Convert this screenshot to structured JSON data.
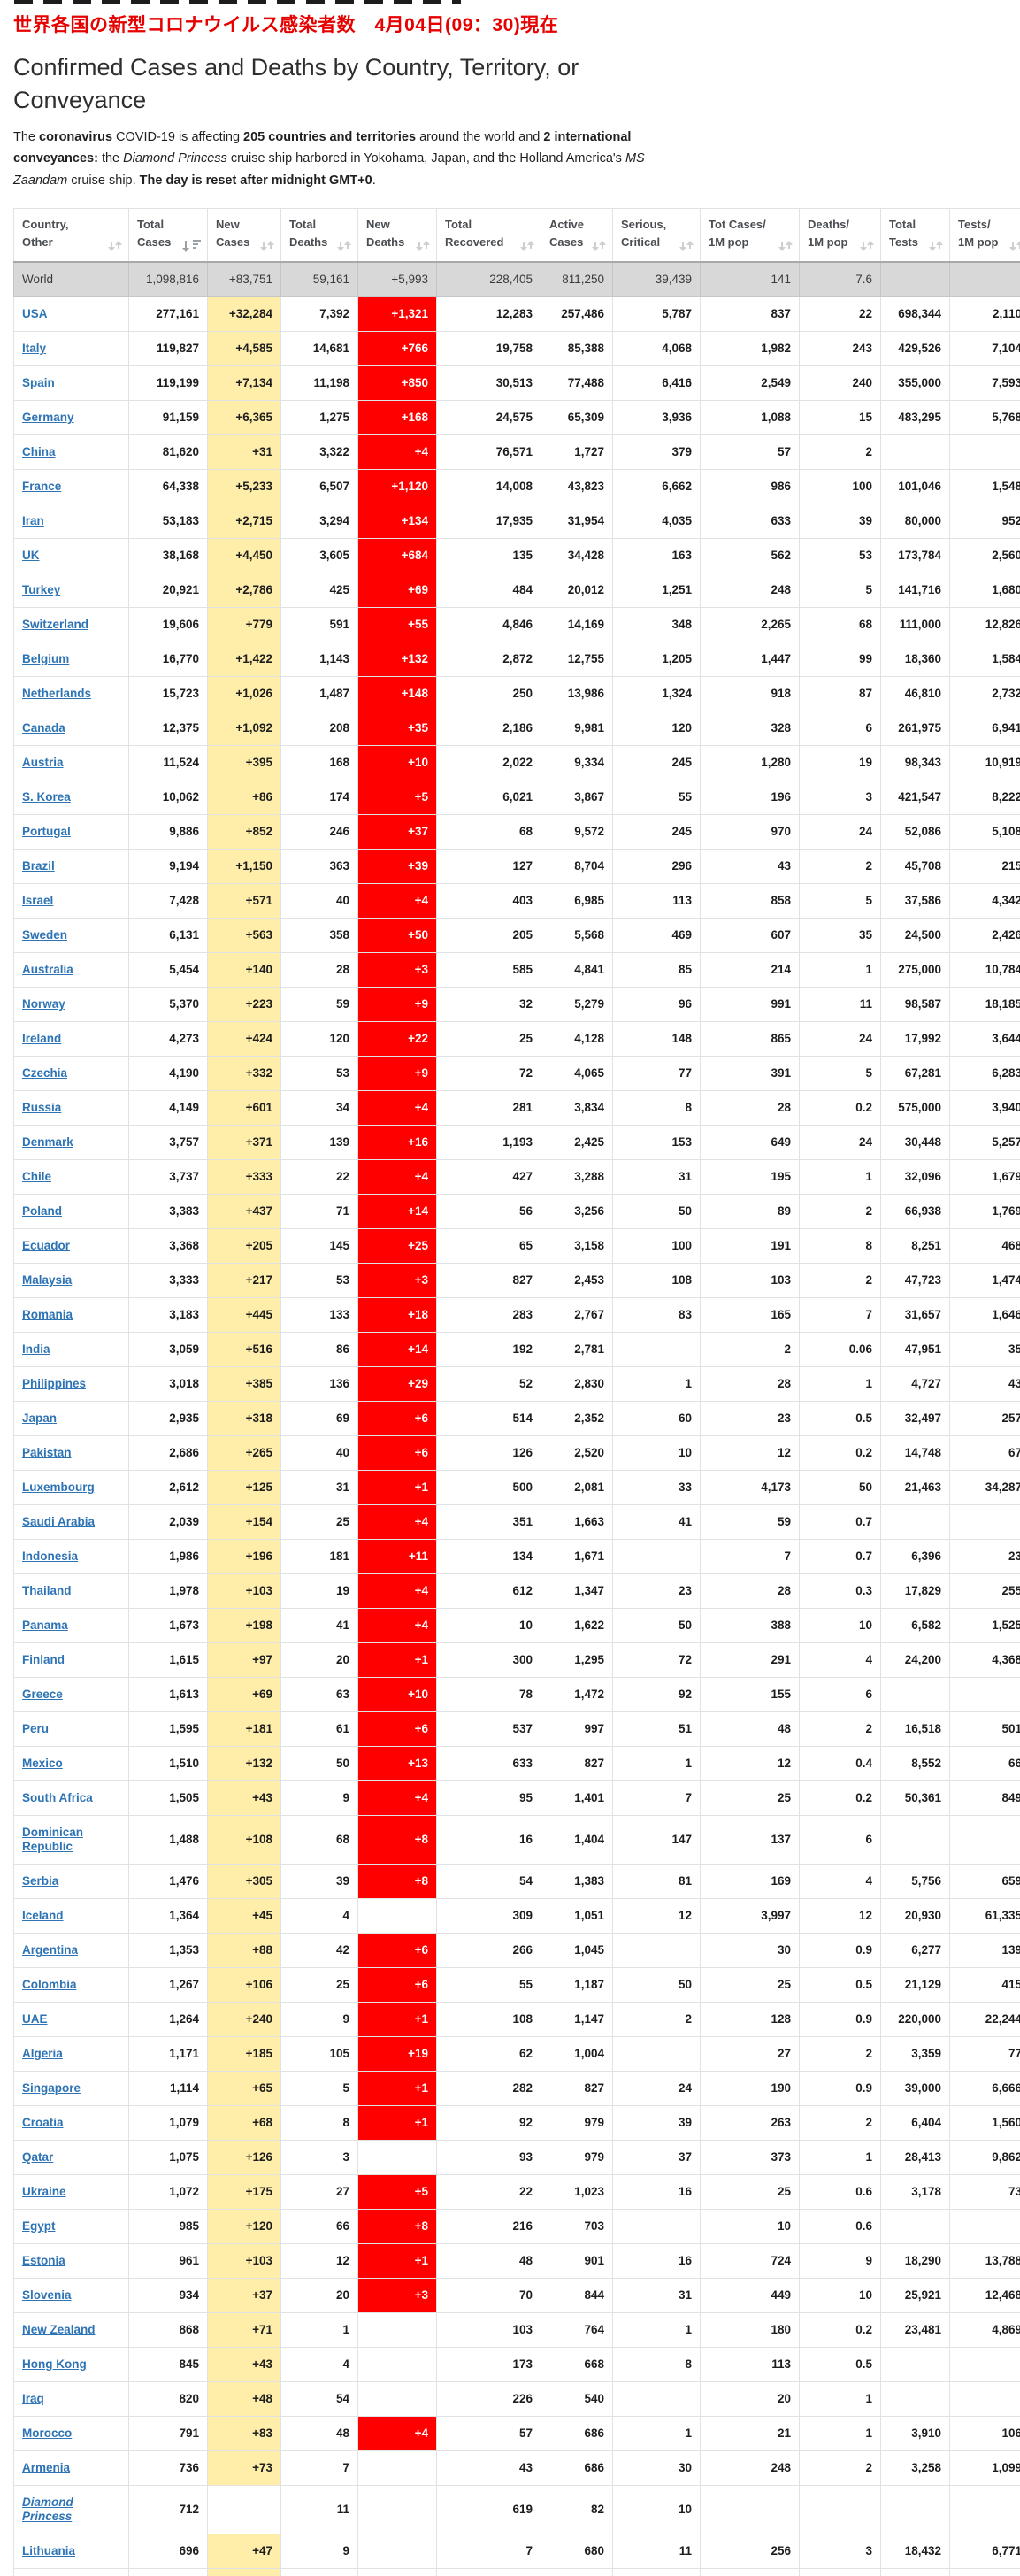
{
  "page": {
    "jp_title": "世界各国の新型コロナウイルス感染者数　4月04日(09：30)現在",
    "title": "Confirmed Cases and Deaths by Country, Territory, or Conveyance",
    "intro": {
      "seg1": "The ",
      "seg2": "coronavirus",
      "seg3": " COVID-19 is affecting ",
      "seg4": "205 countries and territories",
      "seg5": " around the world and ",
      "seg6": "2 international conveyances:",
      "seg7": " the ",
      "seg8": "Diamond Princess",
      "seg9": " cruise ship harbored in Yokohama, Japan, and the Holland America's ",
      "seg10": "MS Zaandam",
      "seg11": " cruise ship. ",
      "seg12": "The day is reset after midnight GMT+0",
      "seg13": "."
    },
    "colors": {
      "title_red": "#e60000",
      "new_cases_bg": "#ffeeaa",
      "new_deaths_bg": "#ff0000",
      "world_row_bg": "#d8d8d8",
      "country_link": "#2e74b5"
    }
  },
  "table": {
    "sorted_column": "Total Cases",
    "sort_direction": "desc",
    "columns": [
      {
        "label": "Country,\nOther"
      },
      {
        "label": "Total\nCases"
      },
      {
        "label": "New\nCases"
      },
      {
        "label": "Total\nDeaths"
      },
      {
        "label": "New\nDeaths"
      },
      {
        "label": "Total\nRecovered"
      },
      {
        "label": "Active\nCases"
      },
      {
        "label": "Serious,\nCritical"
      },
      {
        "label": "Tot Cases/\n1M pop"
      },
      {
        "label": "Deaths/\n1M pop"
      },
      {
        "label": "Total\nTests"
      },
      {
        "label": "Tests/\n1M pop"
      }
    ],
    "cell_names": [
      "total-cases-cell",
      "new-cases-cell",
      "total-deaths-cell",
      "new-deaths-cell",
      "total-recovered-cell",
      "active-cases-cell",
      "serious-critical-cell",
      "cases-per-1m-cell",
      "deaths-per-1m-cell",
      "total-tests-cell",
      "tests-per-1m-cell"
    ],
    "rows": [
      {
        "name": "World",
        "world": true,
        "cells": [
          "1,098,816",
          "+83,751",
          "59,161",
          "+5,993",
          "228,405",
          "811,250",
          "39,439",
          "141",
          "7.6",
          "",
          ""
        ]
      },
      {
        "name": "USA",
        "cells": [
          "277,161",
          "+32,284",
          "7,392",
          "+1,321",
          "12,283",
          "257,486",
          "5,787",
          "837",
          "22",
          "698,344",
          "2,110"
        ]
      },
      {
        "name": "Italy",
        "cells": [
          "119,827",
          "+4,585",
          "14,681",
          "+766",
          "19,758",
          "85,388",
          "4,068",
          "1,982",
          "243",
          "429,526",
          "7,104"
        ]
      },
      {
        "name": "Spain",
        "cells": [
          "119,199",
          "+7,134",
          "11,198",
          "+850",
          "30,513",
          "77,488",
          "6,416",
          "2,549",
          "240",
          "355,000",
          "7,593"
        ]
      },
      {
        "name": "Germany",
        "cells": [
          "91,159",
          "+6,365",
          "1,275",
          "+168",
          "24,575",
          "65,309",
          "3,936",
          "1,088",
          "15",
          "483,295",
          "5,768"
        ]
      },
      {
        "name": "China",
        "cells": [
          "81,620",
          "+31",
          "3,322",
          "+4",
          "76,571",
          "1,727",
          "379",
          "57",
          "2",
          "",
          ""
        ]
      },
      {
        "name": "France",
        "cells": [
          "64,338",
          "+5,233",
          "6,507",
          "+1,120",
          "14,008",
          "43,823",
          "6,662",
          "986",
          "100",
          "101,046",
          "1,548"
        ]
      },
      {
        "name": "Iran",
        "cells": [
          "53,183",
          "+2,715",
          "3,294",
          "+134",
          "17,935",
          "31,954",
          "4,035",
          "633",
          "39",
          "80,000",
          "952"
        ]
      },
      {
        "name": "UK",
        "cells": [
          "38,168",
          "+4,450",
          "3,605",
          "+684",
          "135",
          "34,428",
          "163",
          "562",
          "53",
          "173,784",
          "2,560"
        ]
      },
      {
        "name": "Turkey",
        "cells": [
          "20,921",
          "+2,786",
          "425",
          "+69",
          "484",
          "20,012",
          "1,251",
          "248",
          "5",
          "141,716",
          "1,680"
        ]
      },
      {
        "name": "Switzerland",
        "cells": [
          "19,606",
          "+779",
          "591",
          "+55",
          "4,846",
          "14,169",
          "348",
          "2,265",
          "68",
          "111,000",
          "12,826"
        ]
      },
      {
        "name": "Belgium",
        "cells": [
          "16,770",
          "+1,422",
          "1,143",
          "+132",
          "2,872",
          "12,755",
          "1,205",
          "1,447",
          "99",
          "18,360",
          "1,584"
        ]
      },
      {
        "name": "Netherlands",
        "cells": [
          "15,723",
          "+1,026",
          "1,487",
          "+148",
          "250",
          "13,986",
          "1,324",
          "918",
          "87",
          "46,810",
          "2,732"
        ]
      },
      {
        "name": "Canada",
        "cells": [
          "12,375",
          "+1,092",
          "208",
          "+35",
          "2,186",
          "9,981",
          "120",
          "328",
          "6",
          "261,975",
          "6,941"
        ]
      },
      {
        "name": "Austria",
        "cells": [
          "11,524",
          "+395",
          "168",
          "+10",
          "2,022",
          "9,334",
          "245",
          "1,280",
          "19",
          "98,343",
          "10,919"
        ]
      },
      {
        "name": "S. Korea",
        "cells": [
          "10,062",
          "+86",
          "174",
          "+5",
          "6,021",
          "3,867",
          "55",
          "196",
          "3",
          "421,547",
          "8,222"
        ]
      },
      {
        "name": "Portugal",
        "cells": [
          "9,886",
          "+852",
          "246",
          "+37",
          "68",
          "9,572",
          "245",
          "970",
          "24",
          "52,086",
          "5,108"
        ]
      },
      {
        "name": "Brazil",
        "cells": [
          "9,194",
          "+1,150",
          "363",
          "+39",
          "127",
          "8,704",
          "296",
          "43",
          "2",
          "45,708",
          "215"
        ]
      },
      {
        "name": "Israel",
        "cells": [
          "7,428",
          "+571",
          "40",
          "+4",
          "403",
          "6,985",
          "113",
          "858",
          "5",
          "37,586",
          "4,342"
        ]
      },
      {
        "name": "Sweden",
        "cells": [
          "6,131",
          "+563",
          "358",
          "+50",
          "205",
          "5,568",
          "469",
          "607",
          "35",
          "24,500",
          "2,426"
        ]
      },
      {
        "name": "Australia",
        "cells": [
          "5,454",
          "+140",
          "28",
          "+3",
          "585",
          "4,841",
          "85",
          "214",
          "1",
          "275,000",
          "10,784"
        ]
      },
      {
        "name": "Norway",
        "cells": [
          "5,370",
          "+223",
          "59",
          "+9",
          "32",
          "5,279",
          "96",
          "991",
          "11",
          "98,587",
          "18,185"
        ]
      },
      {
        "name": "Ireland",
        "cells": [
          "4,273",
          "+424",
          "120",
          "+22",
          "25",
          "4,128",
          "148",
          "865",
          "24",
          "17,992",
          "3,644"
        ]
      },
      {
        "name": "Czechia",
        "cells": [
          "4,190",
          "+332",
          "53",
          "+9",
          "72",
          "4,065",
          "77",
          "391",
          "5",
          "67,281",
          "6,283"
        ]
      },
      {
        "name": "Russia",
        "cells": [
          "4,149",
          "+601",
          "34",
          "+4",
          "281",
          "3,834",
          "8",
          "28",
          "0.2",
          "575,000",
          "3,940"
        ]
      },
      {
        "name": "Denmark",
        "cells": [
          "3,757",
          "+371",
          "139",
          "+16",
          "1,193",
          "2,425",
          "153",
          "649",
          "24",
          "30,448",
          "5,257"
        ]
      },
      {
        "name": "Chile",
        "cells": [
          "3,737",
          "+333",
          "22",
          "+4",
          "427",
          "3,288",
          "31",
          "195",
          "1",
          "32,096",
          "1,679"
        ]
      },
      {
        "name": "Poland",
        "cells": [
          "3,383",
          "+437",
          "71",
          "+14",
          "56",
          "3,256",
          "50",
          "89",
          "2",
          "66,938",
          "1,769"
        ]
      },
      {
        "name": "Ecuador",
        "cells": [
          "3,368",
          "+205",
          "145",
          "+25",
          "65",
          "3,158",
          "100",
          "191",
          "8",
          "8,251",
          "468"
        ]
      },
      {
        "name": "Malaysia",
        "cells": [
          "3,333",
          "+217",
          "53",
          "+3",
          "827",
          "2,453",
          "108",
          "103",
          "2",
          "47,723",
          "1,474"
        ]
      },
      {
        "name": "Romania",
        "cells": [
          "3,183",
          "+445",
          "133",
          "+18",
          "283",
          "2,767",
          "83",
          "165",
          "7",
          "31,657",
          "1,646"
        ]
      },
      {
        "name": "India",
        "cells": [
          "3,059",
          "+516",
          "86",
          "+14",
          "192",
          "2,781",
          "",
          "2",
          "0.06",
          "47,951",
          "35"
        ]
      },
      {
        "name": "Philippines",
        "cells": [
          "3,018",
          "+385",
          "136",
          "+29",
          "52",
          "2,830",
          "1",
          "28",
          "1",
          "4,727",
          "43"
        ]
      },
      {
        "name": "Japan",
        "cells": [
          "2,935",
          "+318",
          "69",
          "+6",
          "514",
          "2,352",
          "60",
          "23",
          "0.5",
          "32,497",
          "257"
        ]
      },
      {
        "name": "Pakistan",
        "cells": [
          "2,686",
          "+265",
          "40",
          "+6",
          "126",
          "2,520",
          "10",
          "12",
          "0.2",
          "14,748",
          "67"
        ]
      },
      {
        "name": "Luxembourg",
        "cells": [
          "2,612",
          "+125",
          "31",
          "+1",
          "500",
          "2,081",
          "33",
          "4,173",
          "50",
          "21,463",
          "34,287"
        ]
      },
      {
        "name": "Saudi Arabia",
        "cells": [
          "2,039",
          "+154",
          "25",
          "+4",
          "351",
          "1,663",
          "41",
          "59",
          "0.7",
          "",
          ""
        ]
      },
      {
        "name": "Indonesia",
        "cells": [
          "1,986",
          "+196",
          "181",
          "+11",
          "134",
          "1,671",
          "",
          "7",
          "0.7",
          "6,396",
          "23"
        ]
      },
      {
        "name": "Thailand",
        "cells": [
          "1,978",
          "+103",
          "19",
          "+4",
          "612",
          "1,347",
          "23",
          "28",
          "0.3",
          "17,829",
          "255"
        ]
      },
      {
        "name": "Panama",
        "cells": [
          "1,673",
          "+198",
          "41",
          "+4",
          "10",
          "1,622",
          "50",
          "388",
          "10",
          "6,582",
          "1,525"
        ]
      },
      {
        "name": "Finland",
        "cells": [
          "1,615",
          "+97",
          "20",
          "+1",
          "300",
          "1,295",
          "72",
          "291",
          "4",
          "24,200",
          "4,368"
        ]
      },
      {
        "name": "Greece",
        "cells": [
          "1,613",
          "+69",
          "63",
          "+10",
          "78",
          "1,472",
          "92",
          "155",
          "6",
          "",
          ""
        ]
      },
      {
        "name": "Peru",
        "cells": [
          "1,595",
          "+181",
          "61",
          "+6",
          "537",
          "997",
          "51",
          "48",
          "2",
          "16,518",
          "501"
        ]
      },
      {
        "name": "Mexico",
        "cells": [
          "1,510",
          "+132",
          "50",
          "+13",
          "633",
          "827",
          "1",
          "12",
          "0.4",
          "8,552",
          "66"
        ]
      },
      {
        "name": "South Africa",
        "cells": [
          "1,505",
          "+43",
          "9",
          "+4",
          "95",
          "1,401",
          "7",
          "25",
          "0.2",
          "50,361",
          "849"
        ]
      },
      {
        "name": "Dominican Republic",
        "cells": [
          "1,488",
          "+108",
          "68",
          "+8",
          "16",
          "1,404",
          "147",
          "137",
          "6",
          "",
          ""
        ]
      },
      {
        "name": "Serbia",
        "cells": [
          "1,476",
          "+305",
          "39",
          "+8",
          "54",
          "1,383",
          "81",
          "169",
          "4",
          "5,756",
          "659"
        ]
      },
      {
        "name": "Iceland",
        "cells": [
          "1,364",
          "+45",
          "4",
          "",
          "309",
          "1,051",
          "12",
          "3,997",
          "12",
          "20,930",
          "61,335"
        ]
      },
      {
        "name": "Argentina",
        "cells": [
          "1,353",
          "+88",
          "42",
          "+6",
          "266",
          "1,045",
          "",
          "30",
          "0.9",
          "6,277",
          "139"
        ]
      },
      {
        "name": "Colombia",
        "cells": [
          "1,267",
          "+106",
          "25",
          "+6",
          "55",
          "1,187",
          "50",
          "25",
          "0.5",
          "21,129",
          "415"
        ]
      },
      {
        "name": "UAE",
        "cells": [
          "1,264",
          "+240",
          "9",
          "+1",
          "108",
          "1,147",
          "2",
          "128",
          "0.9",
          "220,000",
          "22,244"
        ]
      },
      {
        "name": "Algeria",
        "cells": [
          "1,171",
          "+185",
          "105",
          "+19",
          "62",
          "1,004",
          "",
          "27",
          "2",
          "3,359",
          "77"
        ]
      },
      {
        "name": "Singapore",
        "cells": [
          "1,114",
          "+65",
          "5",
          "+1",
          "282",
          "827",
          "24",
          "190",
          "0.9",
          "39,000",
          "6,666"
        ]
      },
      {
        "name": "Croatia",
        "cells": [
          "1,079",
          "+68",
          "8",
          "+1",
          "92",
          "979",
          "39",
          "263",
          "2",
          "6,404",
          "1,560"
        ]
      },
      {
        "name": "Qatar",
        "cells": [
          "1,075",
          "+126",
          "3",
          "",
          "93",
          "979",
          "37",
          "373",
          "1",
          "28,413",
          "9,862"
        ]
      },
      {
        "name": "Ukraine",
        "cells": [
          "1,072",
          "+175",
          "27",
          "+5",
          "22",
          "1,023",
          "16",
          "25",
          "0.6",
          "3,178",
          "73"
        ]
      },
      {
        "name": "Egypt",
        "cells": [
          "985",
          "+120",
          "66",
          "+8",
          "216",
          "703",
          "",
          "10",
          "0.6",
          "",
          ""
        ]
      },
      {
        "name": "Estonia",
        "cells": [
          "961",
          "+103",
          "12",
          "+1",
          "48",
          "901",
          "16",
          "724",
          "9",
          "18,290",
          "13,788"
        ]
      },
      {
        "name": "Slovenia",
        "cells": [
          "934",
          "+37",
          "20",
          "+3",
          "70",
          "844",
          "31",
          "449",
          "10",
          "25,921",
          "12,468"
        ]
      },
      {
        "name": "New Zealand",
        "cells": [
          "868",
          "+71",
          "1",
          "",
          "103",
          "764",
          "1",
          "180",
          "0.2",
          "23,481",
          "4,869"
        ]
      },
      {
        "name": "Hong Kong",
        "cells": [
          "845",
          "+43",
          "4",
          "",
          "173",
          "668",
          "8",
          "113",
          "0.5",
          "",
          ""
        ]
      },
      {
        "name": "Iraq",
        "cells": [
          "820",
          "+48",
          "54",
          "",
          "226",
          "540",
          "",
          "20",
          "1",
          "",
          ""
        ]
      },
      {
        "name": "Morocco",
        "cells": [
          "791",
          "+83",
          "48",
          "+4",
          "57",
          "686",
          "1",
          "21",
          "1",
          "3,910",
          "106"
        ]
      },
      {
        "name": "Armenia",
        "cells": [
          "736",
          "+73",
          "7",
          "",
          "43",
          "686",
          "30",
          "248",
          "2",
          "3,258",
          "1,099"
        ]
      },
      {
        "name": "Diamond Princess",
        "italic": true,
        "cells": [
          "712",
          "",
          "11",
          "",
          "619",
          "82",
          "10",
          "",
          "",
          "",
          ""
        ]
      },
      {
        "name": "Lithuania",
        "cells": [
          "696",
          "+47",
          "9",
          "",
          "7",
          "680",
          "11",
          "256",
          "3",
          "18,432",
          "6,771"
        ]
      }
    ],
    "partial_next_row": true
  }
}
